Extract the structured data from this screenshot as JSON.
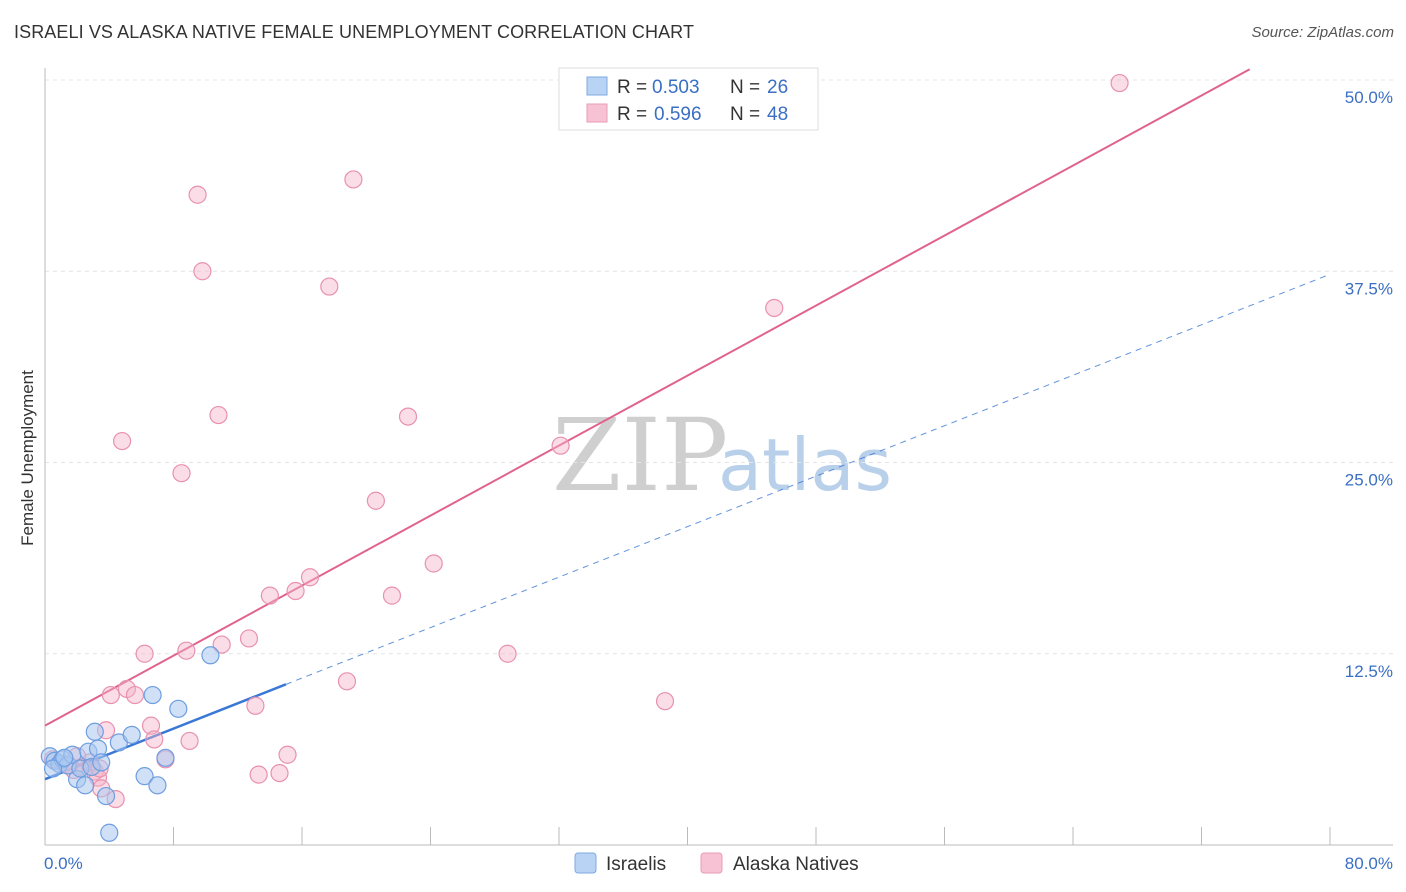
{
  "title": "ISRAELI VS ALASKA NATIVE FEMALE UNEMPLOYMENT CORRELATION CHART",
  "source": "Source: ZipAtlas.com",
  "colors": {
    "blue": "#3a78d6",
    "blue_fill": "#b9d3f4",
    "pink": "#e0628f",
    "pink_fill": "#f7c3d4",
    "axis_text": "#3a6fc4"
  },
  "watermark": {
    "zip": "ZIP",
    "atlas": "atlas"
  },
  "legend": {
    "rows": [
      {
        "r_label": "R =",
        "r_value": "0.503",
        "n_label": "N =",
        "n_value": "26"
      },
      {
        "r_label": "R =",
        "r_value": "0.596",
        "n_label": "N =",
        "n_value": "48"
      }
    ]
  },
  "chart_data": {
    "type": "scatter",
    "title": "ISRAELI VS ALASKA NATIVE FEMALE UNEMPLOYMENT CORRELATION CHART",
    "xlabel": "",
    "ylabel": "Female Unemployment",
    "xlim": [
      0,
      80
    ],
    "ylim": [
      0,
      52
    ],
    "x_tick_labels": [
      "0.0%",
      "80.0%"
    ],
    "y_ticks": [
      12.5,
      25.0,
      37.5,
      50.0
    ],
    "y_tick_labels": [
      "12.5%",
      "25.0%",
      "37.5%",
      "50.0%"
    ],
    "grid": true,
    "legend_position": "top-center",
    "series": [
      {
        "name": "Israelis",
        "color": "#3a78d6",
        "points": [
          [
            0.3,
            5.8
          ],
          [
            0.6,
            5.5
          ],
          [
            0.9,
            5.3
          ],
          [
            1.1,
            5.6
          ],
          [
            1.4,
            5.2
          ],
          [
            1.7,
            5.9
          ],
          [
            2.0,
            4.3
          ],
          [
            2.2,
            5.0
          ],
          [
            2.5,
            3.9
          ],
          [
            2.7,
            6.1
          ],
          [
            2.9,
            5.1
          ],
          [
            3.1,
            7.4
          ],
          [
            3.3,
            6.3
          ],
          [
            3.5,
            5.4
          ],
          [
            3.8,
            3.2
          ],
          [
            4.0,
            0.8
          ],
          [
            4.6,
            6.7
          ],
          [
            5.4,
            7.2
          ],
          [
            6.2,
            4.5
          ],
          [
            6.7,
            9.8
          ],
          [
            7.0,
            3.9
          ],
          [
            7.5,
            5.7
          ],
          [
            8.3,
            8.9
          ],
          [
            10.3,
            12.4
          ],
          [
            0.5,
            5.0
          ],
          [
            1.2,
            5.7
          ]
        ],
        "trend": {
          "x0": 0,
          "y0": 4.3,
          "x1": 15,
          "y1": 10.5,
          "extend_to_x": 80,
          "extend_to_y": 37.3
        }
      },
      {
        "name": "Alaska Natives",
        "color": "#e0628f",
        "points": [
          [
            0.5,
            5.6
          ],
          [
            1.2,
            5.3
          ],
          [
            1.8,
            4.9
          ],
          [
            2.3,
            5.1
          ],
          [
            2.8,
            5.4
          ],
          [
            3.1,
            4.8
          ],
          [
            3.3,
            4.4
          ],
          [
            3.5,
            3.7
          ],
          [
            3.8,
            7.5
          ],
          [
            4.1,
            9.8
          ],
          [
            4.4,
            3.0
          ],
          [
            4.8,
            26.4
          ],
          [
            5.1,
            10.2
          ],
          [
            5.6,
            9.8
          ],
          [
            6.2,
            12.5
          ],
          [
            6.6,
            7.8
          ],
          [
            6.8,
            6.9
          ],
          [
            7.5,
            5.6
          ],
          [
            8.5,
            24.3
          ],
          [
            8.8,
            12.7
          ],
          [
            9.0,
            6.8
          ],
          [
            9.5,
            42.5
          ],
          [
            9.8,
            37.5
          ],
          [
            10.8,
            28.1
          ],
          [
            11.0,
            13.1
          ],
          [
            12.7,
            13.5
          ],
          [
            13.1,
            9.1
          ],
          [
            13.3,
            4.6
          ],
          [
            14.0,
            16.3
          ],
          [
            14.6,
            4.7
          ],
          [
            15.1,
            5.9
          ],
          [
            15.6,
            16.6
          ],
          [
            16.5,
            17.5
          ],
          [
            17.7,
            36.5
          ],
          [
            18.8,
            10.7
          ],
          [
            19.2,
            43.5
          ],
          [
            20.6,
            22.5
          ],
          [
            21.6,
            16.3
          ],
          [
            22.6,
            28.0
          ],
          [
            24.2,
            18.4
          ],
          [
            28.8,
            12.5
          ],
          [
            32.1,
            26.1
          ],
          [
            38.6,
            9.4
          ],
          [
            45.4,
            35.1
          ],
          [
            66.9,
            49.8
          ],
          [
            3.4,
            5.0
          ],
          [
            2.0,
            5.8
          ],
          [
            1.5,
            5.2
          ]
        ],
        "trend": {
          "x0": 0,
          "y0": 7.8,
          "x1": 75,
          "y1": 50.7
        }
      }
    ]
  }
}
